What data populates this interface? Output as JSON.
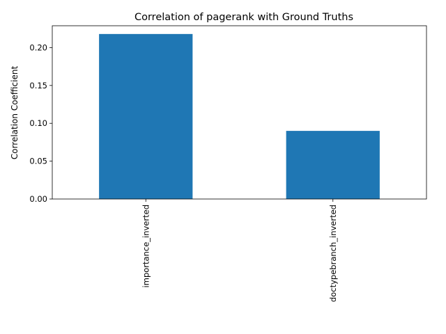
{
  "chart_data": {
    "type": "bar",
    "title": "Correlation of pagerank with Ground Truths",
    "xlabel": "",
    "ylabel": "Correlation Coefficient",
    "categories": [
      "importance_inverted",
      "doctypebranch_inverted"
    ],
    "values": [
      0.218,
      0.09
    ],
    "ylim": [
      0,
      0.2289
    ],
    "yticks": [
      0.0,
      0.05,
      0.1,
      0.15,
      0.2
    ],
    "ytick_labels": [
      "0.00",
      "0.05",
      "0.10",
      "0.15",
      "0.20"
    ],
    "bar_color": "#1f77b4",
    "grid": false,
    "legend": "none"
  }
}
